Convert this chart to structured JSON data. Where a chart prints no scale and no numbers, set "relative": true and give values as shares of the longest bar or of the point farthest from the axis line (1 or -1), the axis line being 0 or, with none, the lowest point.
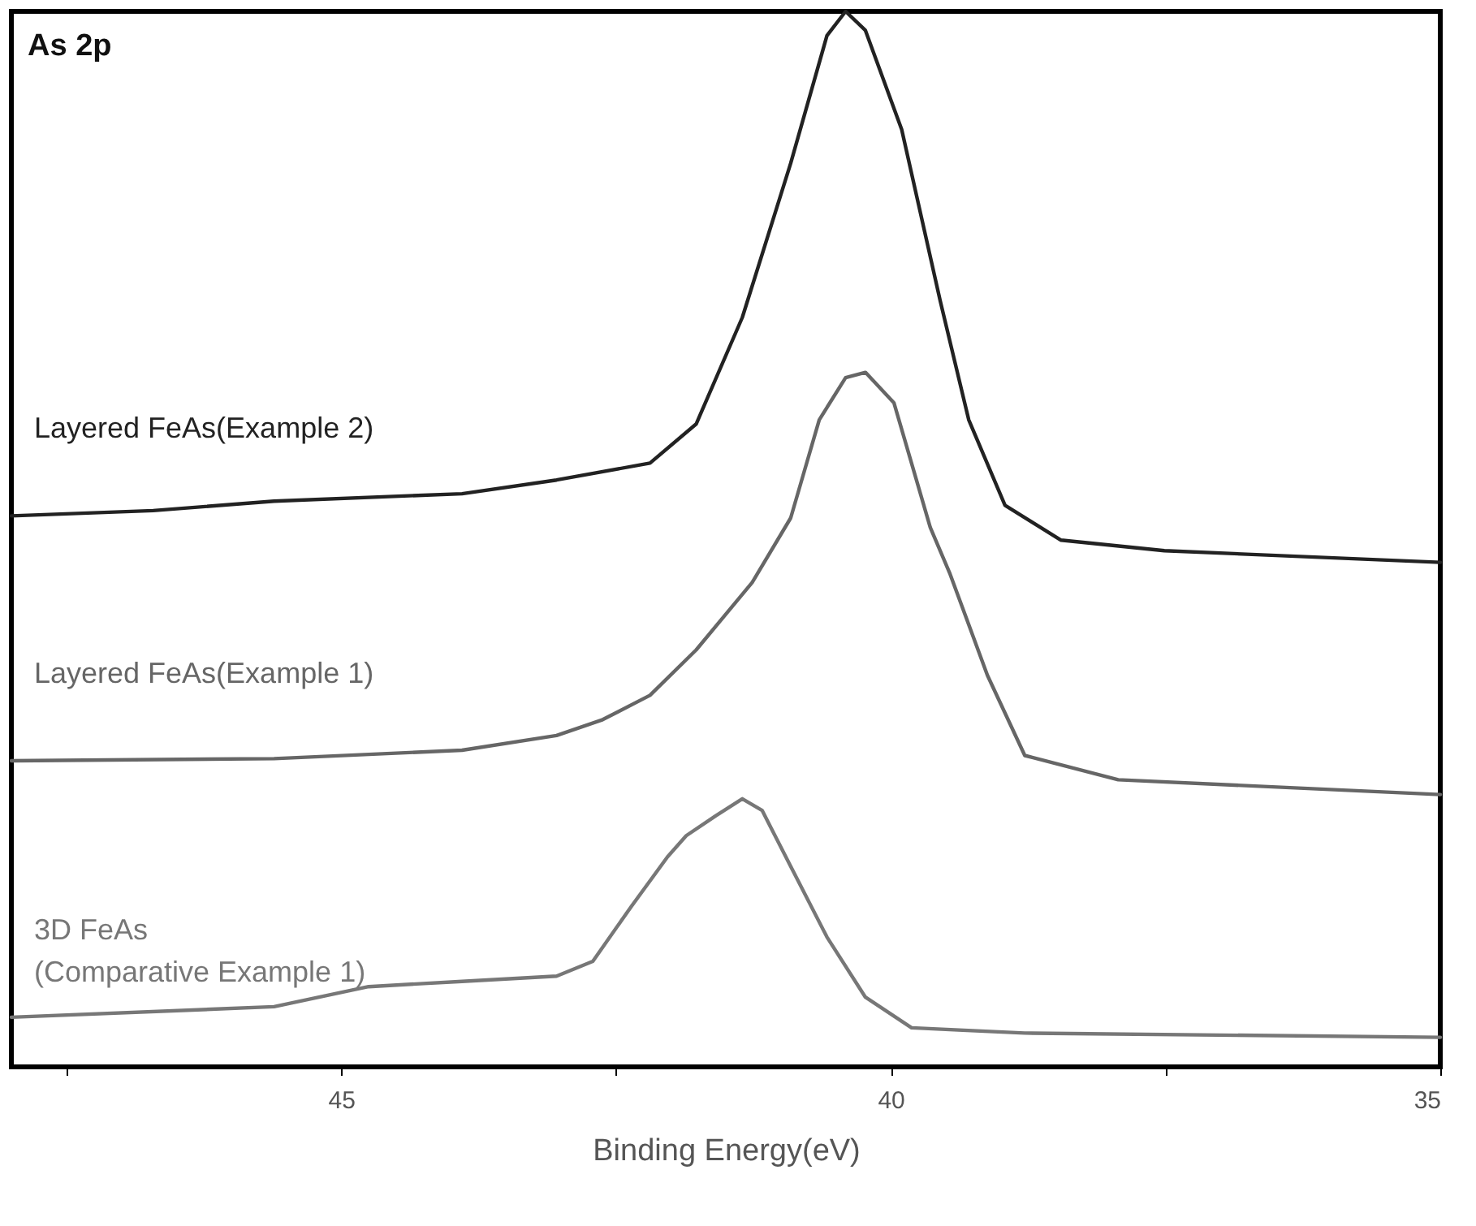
{
  "chart_data": {
    "type": "line",
    "relative": true,
    "xlabel": "Binding Energy(eV)",
    "annotations": [
      "As 2p"
    ],
    "xlim": [
      48,
      35
    ],
    "xticks": [
      {
        "value": 47.5,
        "label": null
      },
      45,
      {
        "value": 42.5,
        "label": null
      },
      40,
      {
        "value": 37.5,
        "label": null
      },
      35
    ],
    "grid": false,
    "series": [
      {
        "name": "Layered FeAs(Example 2)",
        "color": "#222222",
        "x": [
          48.0,
          46.71,
          45.61,
          43.9,
          43.04,
          42.19,
          41.77,
          41.35,
          40.91,
          40.58,
          40.41,
          40.23,
          39.9,
          39.55,
          39.29,
          38.96,
          38.45,
          37.51,
          35.0
        ],
        "values": [
          0.522,
          0.527,
          0.536,
          0.543,
          0.556,
          0.572,
          0.609,
          0.71,
          0.856,
          0.977,
          1.0,
          0.982,
          0.888,
          0.726,
          0.613,
          0.532,
          0.499,
          0.489,
          0.478
        ]
      },
      {
        "name": "Layered FeAs(Example 1)",
        "color": "#666666",
        "x": [
          48.0,
          45.61,
          43.9,
          43.04,
          42.62,
          42.19,
          41.77,
          41.26,
          40.91,
          40.65,
          40.41,
          40.23,
          39.97,
          39.64,
          39.46,
          39.12,
          38.78,
          37.93,
          35.0
        ],
        "values": [
          0.29,
          0.292,
          0.3,
          0.314,
          0.329,
          0.352,
          0.395,
          0.459,
          0.52,
          0.613,
          0.653,
          0.658,
          0.629,
          0.511,
          0.467,
          0.371,
          0.295,
          0.272,
          0.258
        ]
      },
      {
        "name": "3D FeAs\n(Comparative Example 1)",
        "color": "#777777",
        "x": [
          48.0,
          45.61,
          44.75,
          43.9,
          43.04,
          42.71,
          42.36,
          42.03,
          41.86,
          41.59,
          41.35,
          41.17,
          40.91,
          40.58,
          40.23,
          39.81,
          38.78,
          35.0
        ],
        "values": [
          0.047,
          0.057,
          0.076,
          0.081,
          0.086,
          0.1,
          0.152,
          0.199,
          0.219,
          0.238,
          0.254,
          0.243,
          0.19,
          0.123,
          0.066,
          0.037,
          0.032,
          0.028
        ]
      }
    ],
    "line_style": "solid"
  }
}
